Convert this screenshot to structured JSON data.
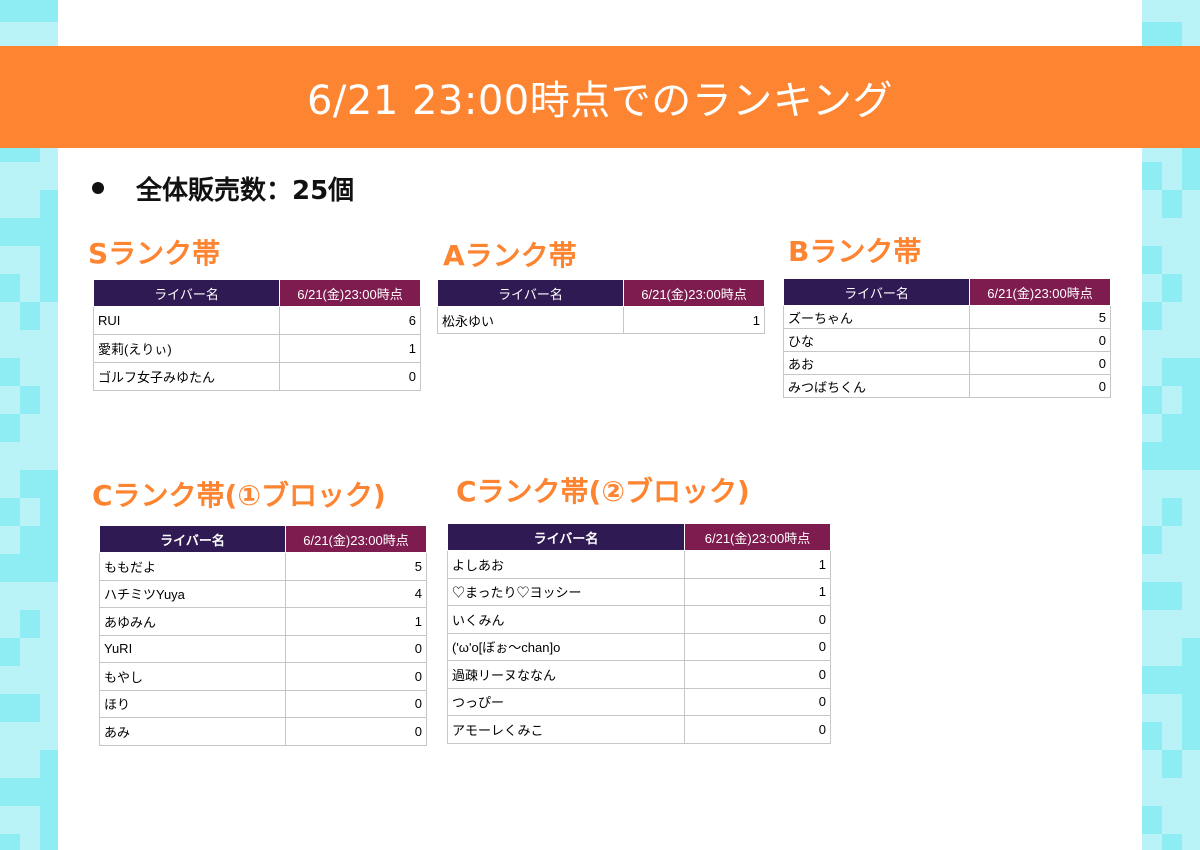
{
  "header": {
    "title": "6/21 23:00時点でのランキング"
  },
  "summary": {
    "text": "全体販売数：25個"
  },
  "colors": {
    "banner": "#fd8431",
    "section_title": "#fd8431",
    "header_name_bg": "#2f1a53",
    "header_count_bg": "#7e1b4f",
    "side_tile_light": "#b9f3f8",
    "side_tile_dark": "#8eecf3"
  },
  "sections": [
    {
      "title": "Sランク帯",
      "columns": [
        "ライバー名",
        "6/21(金)23:00時点"
      ],
      "rows": [
        {
          "name": "RUI",
          "count": "6"
        },
        {
          "name": "愛莉(えりぃ)",
          "count": "1"
        },
        {
          "name": "ゴルフ女子みゆたん",
          "count": "0"
        }
      ]
    },
    {
      "title": "Aランク帯",
      "columns": [
        "ライバー名",
        "6/21(金)23:00時点"
      ],
      "rows": [
        {
          "name": "松永ゆい",
          "count": "1"
        }
      ]
    },
    {
      "title": "Bランク帯",
      "columns": [
        "ライバー名",
        "6/21(金)23:00時点"
      ],
      "rows": [
        {
          "name": "ズーちゃん",
          "count": "5"
        },
        {
          "name": "ひな",
          "count": "0"
        },
        {
          "name": "あお",
          "count": "0"
        },
        {
          "name": "みつばちくん",
          "count": "0"
        }
      ]
    },
    {
      "title": "Cランク帯(①ブロック)",
      "columns": [
        "ライバー名",
        "6/21(金)23:00時点"
      ],
      "rows": [
        {
          "name": "ももだよ",
          "count": "5"
        },
        {
          "name": "ハチミツYuya",
          "count": "4"
        },
        {
          "name": "あゆみん",
          "count": "1"
        },
        {
          "name": "YuRI",
          "count": "0"
        },
        {
          "name": "もやし",
          "count": "0"
        },
        {
          "name": "ほり",
          "count": "0"
        },
        {
          "name": "あみ",
          "count": "0"
        }
      ]
    },
    {
      "title": "Cランク帯(②ブロック)",
      "columns": [
        "ライバー名",
        "6/21(金)23:00時点"
      ],
      "rows": [
        {
          "name": "よしあお",
          "count": "1"
        },
        {
          "name": "♡まったり♡ヨッシー",
          "count": "1"
        },
        {
          "name": "いくみん",
          "count": "0"
        },
        {
          "name": "('ω'o[ぼぉ〜chan]o",
          "count": "0"
        },
        {
          "name": "過疎リーヌななん",
          "count": "0"
        },
        {
          "name": "つっぴー",
          "count": "0"
        },
        {
          "name": "アモーレくみこ",
          "count": "0"
        }
      ]
    }
  ]
}
